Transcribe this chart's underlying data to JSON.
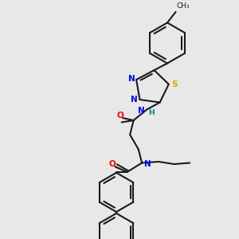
{
  "bg_color": "#e8e8e8",
  "bond_color": "#1a1a1a",
  "bond_lw": 1.5,
  "atom_colors": {
    "N": "#0000ff",
    "O": "#ff0000",
    "S": "#ccaa00",
    "H": "#008080",
    "C": "#1a1a1a"
  },
  "font_size": 7.5,
  "figsize": [
    3.0,
    3.0
  ],
  "dpi": 100
}
